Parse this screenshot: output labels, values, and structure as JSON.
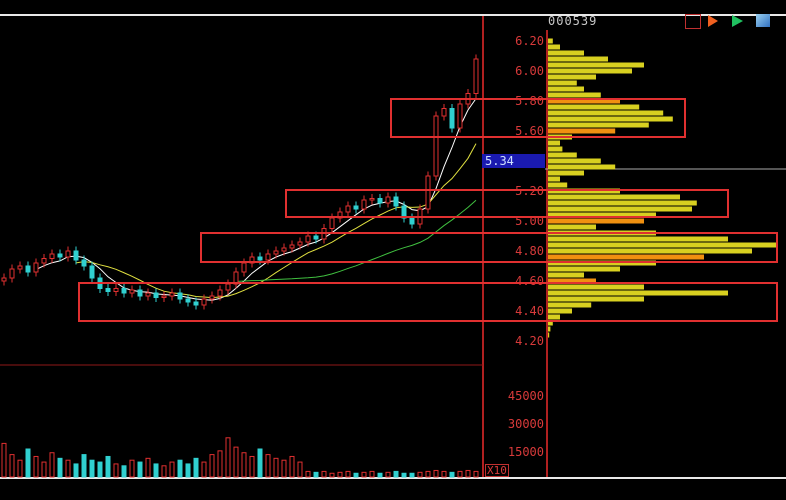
{
  "header": {
    "stock_code": "000539"
  },
  "icons": [
    "flag-icon",
    "play-red-icon",
    "play-green-icon",
    "window-icon"
  ],
  "colors": {
    "up": "#e03030",
    "down": "#30d0d0",
    "profile": "#d8d020",
    "profile_highlight": "#f09010",
    "axis": "#c02020",
    "current_price_tag": "#1a1ab0"
  },
  "current_price": "5.34",
  "volume_unit_label": "X10",
  "chart_data": [
    {
      "type": "candlestick",
      "y_ticks": [
        "6.20",
        "6.00",
        "5.80",
        "5.60",
        "5.20",
        "5.00",
        "4.80",
        "4.60",
        "4.40",
        "4.20"
      ],
      "ylim": [
        4.2,
        6.2
      ],
      "closes": [
        4.62,
        4.68,
        4.7,
        4.66,
        4.72,
        4.75,
        4.78,
        4.76,
        4.8,
        4.74,
        4.7,
        4.62,
        4.55,
        4.53,
        4.55,
        4.52,
        4.54,
        4.5,
        4.52,
        4.49,
        4.5,
        4.52,
        4.48,
        4.46,
        4.44,
        4.48,
        4.5,
        4.54,
        4.58,
        4.66,
        4.72,
        4.76,
        4.74,
        4.78,
        4.8,
        4.82,
        4.84,
        4.86,
        4.9,
        4.88,
        4.95,
        5.02,
        5.06,
        5.1,
        5.08,
        5.14,
        5.15,
        5.12,
        5.16,
        5.1,
        5.02,
        4.98,
        5.08,
        5.3,
        5.7,
        5.75,
        5.62,
        5.78,
        5.85,
        6.08
      ],
      "moving_averages": [
        "MA5",
        "MA10",
        "MA30"
      ]
    },
    {
      "type": "bar",
      "title": "volume",
      "y_ticks": [
        "45000",
        "30000",
        "15000"
      ],
      "ylim": [
        0,
        45000
      ],
      "values": [
        18000,
        12000,
        9000,
        15000,
        11000,
        8000,
        13000,
        10000,
        9000,
        7000,
        12000,
        9000,
        8000,
        11000,
        7000,
        6000,
        9000,
        8000,
        10000,
        7000,
        6000,
        8000,
        9000,
        7000,
        10000,
        8000,
        12000,
        14000,
        21000,
        16000,
        13000,
        11000,
        15000,
        12000,
        10000,
        9000,
        11000,
        8000,
        3000,
        2500,
        3000,
        2000,
        2500,
        3000,
        2000,
        2500,
        3000,
        2000,
        2500,
        3000,
        2000,
        2000,
        2500,
        3000,
        3500,
        3000,
        2500,
        3000,
        3500,
        3000
      ]
    },
    {
      "type": "horizontal-bar",
      "title": "chip distribution",
      "levels": [
        6.2,
        6.16,
        6.12,
        6.08,
        6.04,
        6.0,
        5.96,
        5.92,
        5.88,
        5.84,
        5.8,
        5.76,
        5.72,
        5.68,
        5.64,
        5.6,
        5.56,
        5.52,
        5.48,
        5.44,
        5.4,
        5.36,
        5.32,
        5.28,
        5.24,
        5.2,
        5.16,
        5.12,
        5.08,
        5.04,
        5.0,
        4.96,
        4.92,
        4.88,
        4.84,
        4.8,
        4.76,
        4.72,
        4.68,
        4.64,
        4.6,
        4.56,
        4.52,
        4.48,
        4.44,
        4.4,
        4.36,
        4.32,
        4.28,
        4.24
      ],
      "values": [
        2,
        5,
        15,
        25,
        40,
        35,
        20,
        12,
        15,
        22,
        30,
        38,
        48,
        52,
        42,
        28,
        10,
        5,
        6,
        12,
        22,
        28,
        15,
        5,
        8,
        30,
        55,
        62,
        60,
        45,
        40,
        20,
        45,
        75,
        95,
        85,
        65,
        45,
        30,
        15,
        20,
        40,
        75,
        40,
        18,
        10,
        5,
        2,
        1,
        0.5
      ],
      "highlight_levels": [
        5.8,
        5.6,
        5.0,
        4.76,
        4.6
      ]
    }
  ]
}
